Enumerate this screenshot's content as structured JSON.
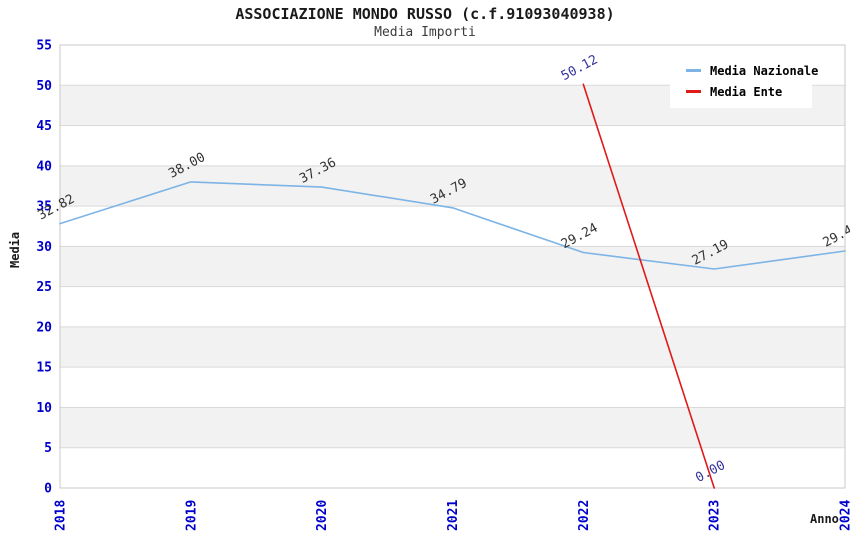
{
  "header": {
    "title": "ASSOCIAZIONE MONDO RUSSO (c.f.91093040938)",
    "subtitle": "Media Importi"
  },
  "chart_data": {
    "type": "line",
    "title": "ASSOCIAZIONE MONDO RUSSO (c.f.91093040938)",
    "subtitle": "Media Importi",
    "xlabel": "Anno",
    "ylabel": "Media",
    "x": [
      2018,
      2019,
      2020,
      2021,
      2022,
      2023,
      2024
    ],
    "series": [
      {
        "name": "Media Nazionale",
        "color": "#7db4e6",
        "label_color": "#333333",
        "values": [
          32.82,
          38.0,
          37.36,
          34.79,
          29.24,
          27.19,
          29.43
        ]
      },
      {
        "name": "Media Ente",
        "color": "#e01919",
        "label_color": "#333399",
        "values": [
          null,
          null,
          null,
          null,
          50.12,
          0.0,
          null
        ]
      }
    ],
    "ylim": [
      0,
      55
    ],
    "ytick_step": 5,
    "grid": true,
    "legend_position": "top-right",
    "colors": {
      "tick_label": "#0000cc",
      "band": "#f2f2f2",
      "gridline": "#d9d9d9",
      "plot_border": "#c8c8c8"
    }
  }
}
